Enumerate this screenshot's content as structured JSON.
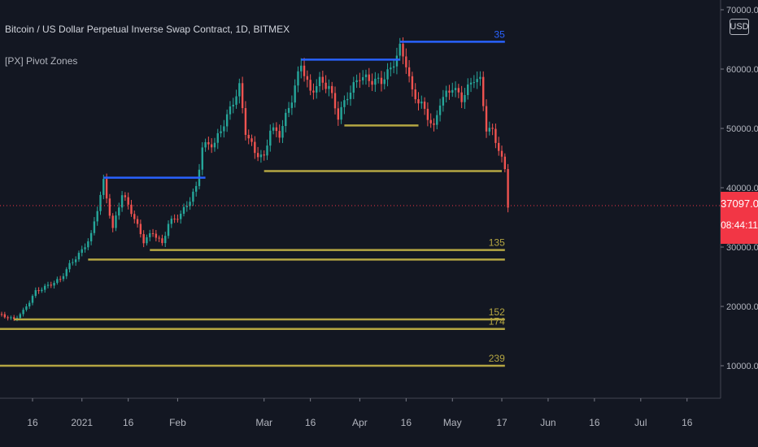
{
  "header": {
    "symbol_title": "Bitcoin / US Dollar Perpetual Inverse Swap Contract, 1D, BITMEX",
    "indicator_title": "[PX] Pivot Zones"
  },
  "price_scale": {
    "currency": "USD",
    "last_price": "37097.0",
    "countdown": "08:44:11",
    "tick_labels": [
      "70000.0",
      "60000.0",
      "50000.0",
      "40000.0",
      "30000.0",
      "20000.0",
      "10000.0"
    ]
  },
  "time_axis": {
    "tick_labels": [
      "16",
      "2021",
      "16",
      "Feb",
      "Mar",
      "16",
      "Apr",
      "16",
      "May",
      "17",
      "Jun",
      "16",
      "Jul",
      "16"
    ]
  },
  "colors": {
    "background": "#131722",
    "up_candle": "#26a69a",
    "down_candle": "#ef5350",
    "resistance_line": "#2962ff",
    "support_line": "#b5a642",
    "last_price": "#f23645"
  },
  "chart_data": {
    "type": "candlestick",
    "symbol": "Bitcoin / US Dollar Perpetual Inverse Swap Contract",
    "interval": "1D",
    "exchange": "BITMEX",
    "x_range": [
      "2020-12-01",
      "2021-08-31"
    ],
    "ylim": [
      0,
      73000
    ],
    "y_ticks": [
      10000,
      20000,
      30000,
      40000,
      50000,
      60000,
      70000
    ],
    "x_ticks": [
      "2020-12-16",
      "2021-01-01",
      "2021-01-16",
      "2021-02-01",
      "2021-03-01",
      "2021-03-16",
      "2021-04-01",
      "2021-04-16",
      "2021-05-01",
      "2021-05-17",
      "2021-06-01",
      "2021-06-16",
      "2021-07-01",
      "2021-07-16"
    ],
    "last_price": 37097.0,
    "close_path": [
      [
        "2020-12-01",
        19000
      ],
      [
        "2020-12-06",
        18500
      ],
      [
        "2020-12-10",
        17800
      ],
      [
        "2020-12-13",
        19200
      ],
      [
        "2020-12-17",
        22500
      ],
      [
        "2020-12-21",
        23500
      ],
      [
        "2020-12-25",
        24600
      ],
      [
        "2020-12-28",
        27000
      ],
      [
        "2021-01-01",
        29400
      ],
      [
        "2021-01-04",
        32000
      ],
      [
        "2021-01-06",
        36500
      ],
      [
        "2021-01-08",
        41000
      ],
      [
        "2021-01-11",
        33000
      ],
      [
        "2021-01-14",
        39000
      ],
      [
        "2021-01-17",
        36000
      ],
      [
        "2021-01-21",
        31000
      ],
      [
        "2021-01-24",
        32500
      ],
      [
        "2021-01-27",
        30500
      ],
      [
        "2021-01-29",
        34000
      ],
      [
        "2021-02-02",
        35500
      ],
      [
        "2021-02-05",
        38000
      ],
      [
        "2021-02-07",
        40000
      ],
      [
        "2021-02-09",
        47000
      ],
      [
        "2021-02-13",
        47500
      ],
      [
        "2021-02-17",
        52000
      ],
      [
        "2021-02-21",
        57000
      ],
      [
        "2021-02-23",
        49500
      ],
      [
        "2021-02-26",
        46000
      ],
      [
        "2021-03-01",
        45000
      ],
      [
        "2021-03-03",
        50000
      ],
      [
        "2021-03-06",
        49000
      ],
      [
        "2021-03-10",
        55000
      ],
      [
        "2021-03-13",
        61000
      ],
      [
        "2021-03-16",
        56000
      ],
      [
        "2021-03-19",
        58000
      ],
      [
        "2021-03-22",
        57000
      ],
      [
        "2021-03-25",
        52000
      ],
      [
        "2021-03-28",
        55500
      ],
      [
        "2021-04-01",
        58800
      ],
      [
        "2021-04-05",
        58000
      ],
      [
        "2021-04-08",
        58000
      ],
      [
        "2021-04-11",
        60000
      ],
      [
        "2021-04-14",
        63500
      ],
      [
        "2021-04-16",
        61000
      ],
      [
        "2021-04-18",
        56000
      ],
      [
        "2021-04-21",
        54000
      ],
      [
        "2021-04-25",
        50000
      ],
      [
        "2021-04-27",
        54500
      ],
      [
        "2021-05-01",
        57000
      ],
      [
        "2021-05-04",
        55000
      ],
      [
        "2021-05-08",
        58500
      ],
      [
        "2021-05-10",
        58000
      ],
      [
        "2021-05-12",
        50000
      ],
      [
        "2021-05-14",
        49500
      ],
      [
        "2021-05-16",
        46500
      ],
      [
        "2021-05-18",
        43000
      ],
      [
        "2021-05-19",
        37097
      ]
    ],
    "pivot_zones": [
      {
        "kind": "resistance",
        "start": "2021-01-08",
        "end": "2021-02-10",
        "value": 41700
      },
      {
        "kind": "resistance",
        "start": "2021-03-13",
        "end": "2021-04-14",
        "value": 61600
      },
      {
        "kind": "resistance",
        "start": "2021-04-14",
        "end": "2021-05-18",
        "value": 64600,
        "label": "35"
      },
      {
        "kind": "support",
        "start": "2021-03-27",
        "end": "2021-04-20",
        "value": 50500
      },
      {
        "kind": "support",
        "start": "2021-03-01",
        "end": "2021-05-17",
        "value": 42800
      },
      {
        "kind": "support",
        "start": "2021-01-23",
        "end": "2021-05-18",
        "value": 29500,
        "label": "135"
      },
      {
        "kind": "support",
        "start": "2021-01-03",
        "end": "2021-05-18",
        "value": 27900
      },
      {
        "kind": "support",
        "start": "2020-12-10",
        "end": "2021-05-18",
        "value": 17800,
        "label": "152"
      },
      {
        "kind": "support",
        "start": "2020-12-01",
        "end": "2021-05-18",
        "value": 16200,
        "label": "174"
      },
      {
        "kind": "support",
        "start": "2020-12-01",
        "end": "2021-05-18",
        "value": 10000,
        "label": "239"
      }
    ]
  }
}
